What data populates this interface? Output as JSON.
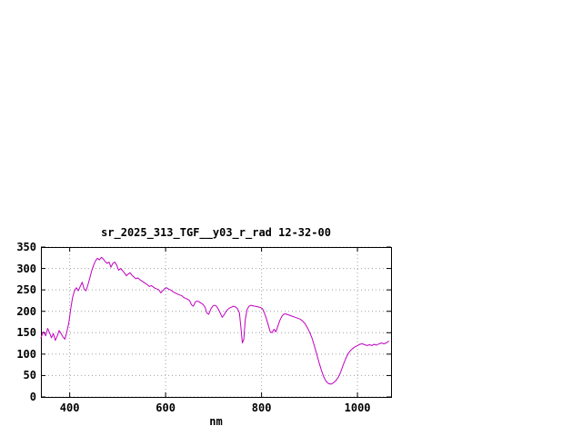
{
  "page": {
    "background": "#ffffff"
  },
  "chart": {
    "title": "sr_2025_313_TGF__y03_r_rad 12-32-00",
    "xlabel": "nm",
    "border_color": "#000000",
    "grid_color": "#a0a0a0",
    "text_color": "#000000"
  },
  "chart_data": {
    "type": "line",
    "title": "sr_2025_313_TGF__y03_r_rad 12-32-00",
    "xlabel": "nm",
    "ylabel": "",
    "xlim": [
      340,
      1070
    ],
    "ylim": [
      0,
      350
    ],
    "x_ticks": [
      400,
      600,
      800,
      1000
    ],
    "y_ticks": [
      0,
      50,
      100,
      150,
      200,
      250,
      300,
      350
    ],
    "grid": true,
    "legend": "none",
    "series": [
      {
        "name": "spectral_radiance",
        "color": "#c000c0",
        "x": [
          340,
          345,
          350,
          354,
          358,
          362,
          366,
          370,
          374,
          378,
          382,
          386,
          390,
          394,
          398,
          402,
          406,
          410,
          414,
          418,
          422,
          426,
          430,
          434,
          438,
          442,
          446,
          450,
          454,
          458,
          462,
          466,
          470,
          474,
          478,
          482,
          486,
          490,
          494,
          498,
          502,
          506,
          510,
          514,
          518,
          522,
          526,
          530,
          534,
          538,
          542,
          546,
          550,
          554,
          558,
          562,
          566,
          570,
          574,
          578,
          582,
          586,
          590,
          594,
          598,
          602,
          606,
          610,
          614,
          618,
          622,
          626,
          630,
          634,
          638,
          642,
          646,
          650,
          654,
          658,
          662,
          666,
          670,
          674,
          678,
          682,
          686,
          690,
          694,
          698,
          702,
          706,
          710,
          714,
          718,
          722,
          726,
          730,
          734,
          738,
          742,
          746,
          750,
          754,
          757,
          760,
          763,
          766,
          770,
          774,
          778,
          782,
          786,
          790,
          794,
          798,
          802,
          806,
          810,
          814,
          818,
          822,
          826,
          830,
          834,
          838,
          842,
          846,
          850,
          855,
          860,
          865,
          870,
          875,
          880,
          885,
          890,
          895,
          900,
          905,
          910,
          915,
          920,
          925,
          930,
          935,
          940,
          945,
          950,
          955,
          960,
          965,
          970,
          975,
          980,
          985,
          990,
          995,
          1000,
          1005,
          1010,
          1015,
          1020,
          1025,
          1030,
          1035,
          1040,
          1045,
          1050,
          1055,
          1060,
          1065
        ],
        "y": [
          138,
          152,
          143,
          160,
          150,
          138,
          148,
          132,
          142,
          155,
          148,
          140,
          135,
          152,
          172,
          205,
          232,
          248,
          255,
          248,
          258,
          268,
          252,
          248,
          262,
          278,
          295,
          308,
          318,
          324,
          320,
          326,
          322,
          316,
          312,
          315,
          303,
          312,
          315,
          308,
          296,
          300,
          295,
          290,
          283,
          287,
          290,
          284,
          280,
          276,
          278,
          274,
          271,
          268,
          265,
          262,
          258,
          260,
          257,
          254,
          252,
          250,
          243,
          248,
          253,
          255,
          252,
          250,
          247,
          244,
          242,
          240,
          238,
          236,
          232,
          230,
          228,
          225,
          215,
          212,
          222,
          224,
          222,
          219,
          216,
          210,
          196,
          193,
          205,
          212,
          214,
          212,
          205,
          196,
          186,
          192,
          200,
          205,
          208,
          210,
          212,
          210,
          206,
          196,
          162,
          126,
          135,
          180,
          205,
          212,
          214,
          213,
          212,
          211,
          210,
          209,
          206,
          196,
          183,
          168,
          152,
          150,
          158,
          152,
          165,
          178,
          188,
          193,
          194,
          192,
          190,
          188,
          186,
          184,
          182,
          178,
          172,
          163,
          152,
          138,
          120,
          100,
          80,
          62,
          46,
          36,
          31,
          30,
          33,
          38,
          46,
          58,
          74,
          88,
          100,
          108,
          113,
          117,
          120,
          123,
          124,
          122,
          120,
          122,
          120,
          123,
          121,
          124,
          126,
          124,
          126,
          130
        ]
      }
    ]
  }
}
